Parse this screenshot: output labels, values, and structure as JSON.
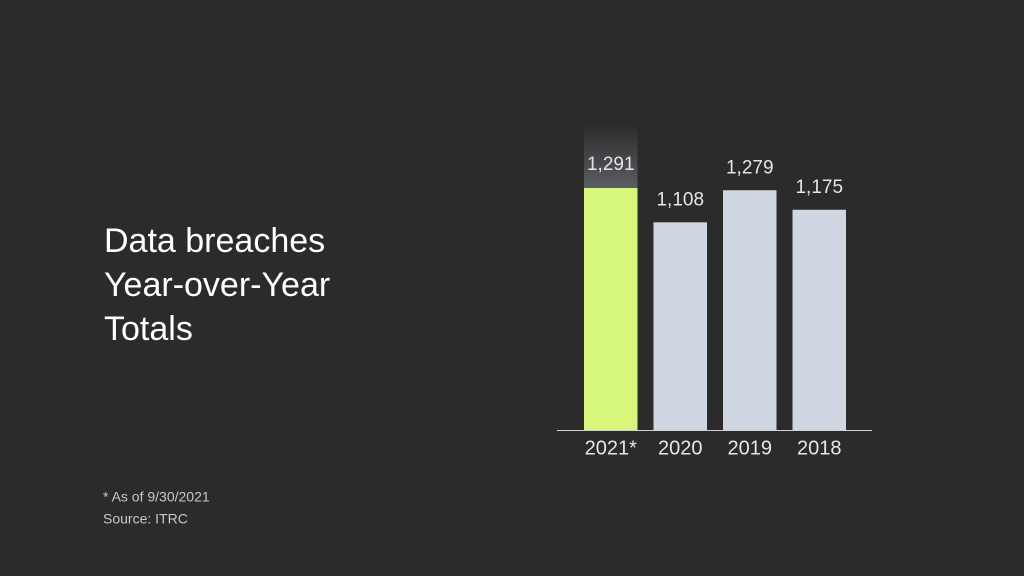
{
  "chart_data": {
    "type": "bar",
    "title": [
      "Data breaches",
      "Year-over-Year",
      "Totals"
    ],
    "categories": [
      "2021*",
      "2020",
      "2019",
      "2018"
    ],
    "values": [
      1291,
      1108,
      1279,
      1175
    ],
    "value_labels": [
      "1,291",
      "1,108",
      "1,279",
      "1,175"
    ],
    "colors": [
      "#d6f77b",
      "#cfd8e2",
      "#cfd8e2",
      "#cfd8e2"
    ],
    "notes": [
      "* As of 9/30/2021",
      "Source: ITRC"
    ]
  }
}
